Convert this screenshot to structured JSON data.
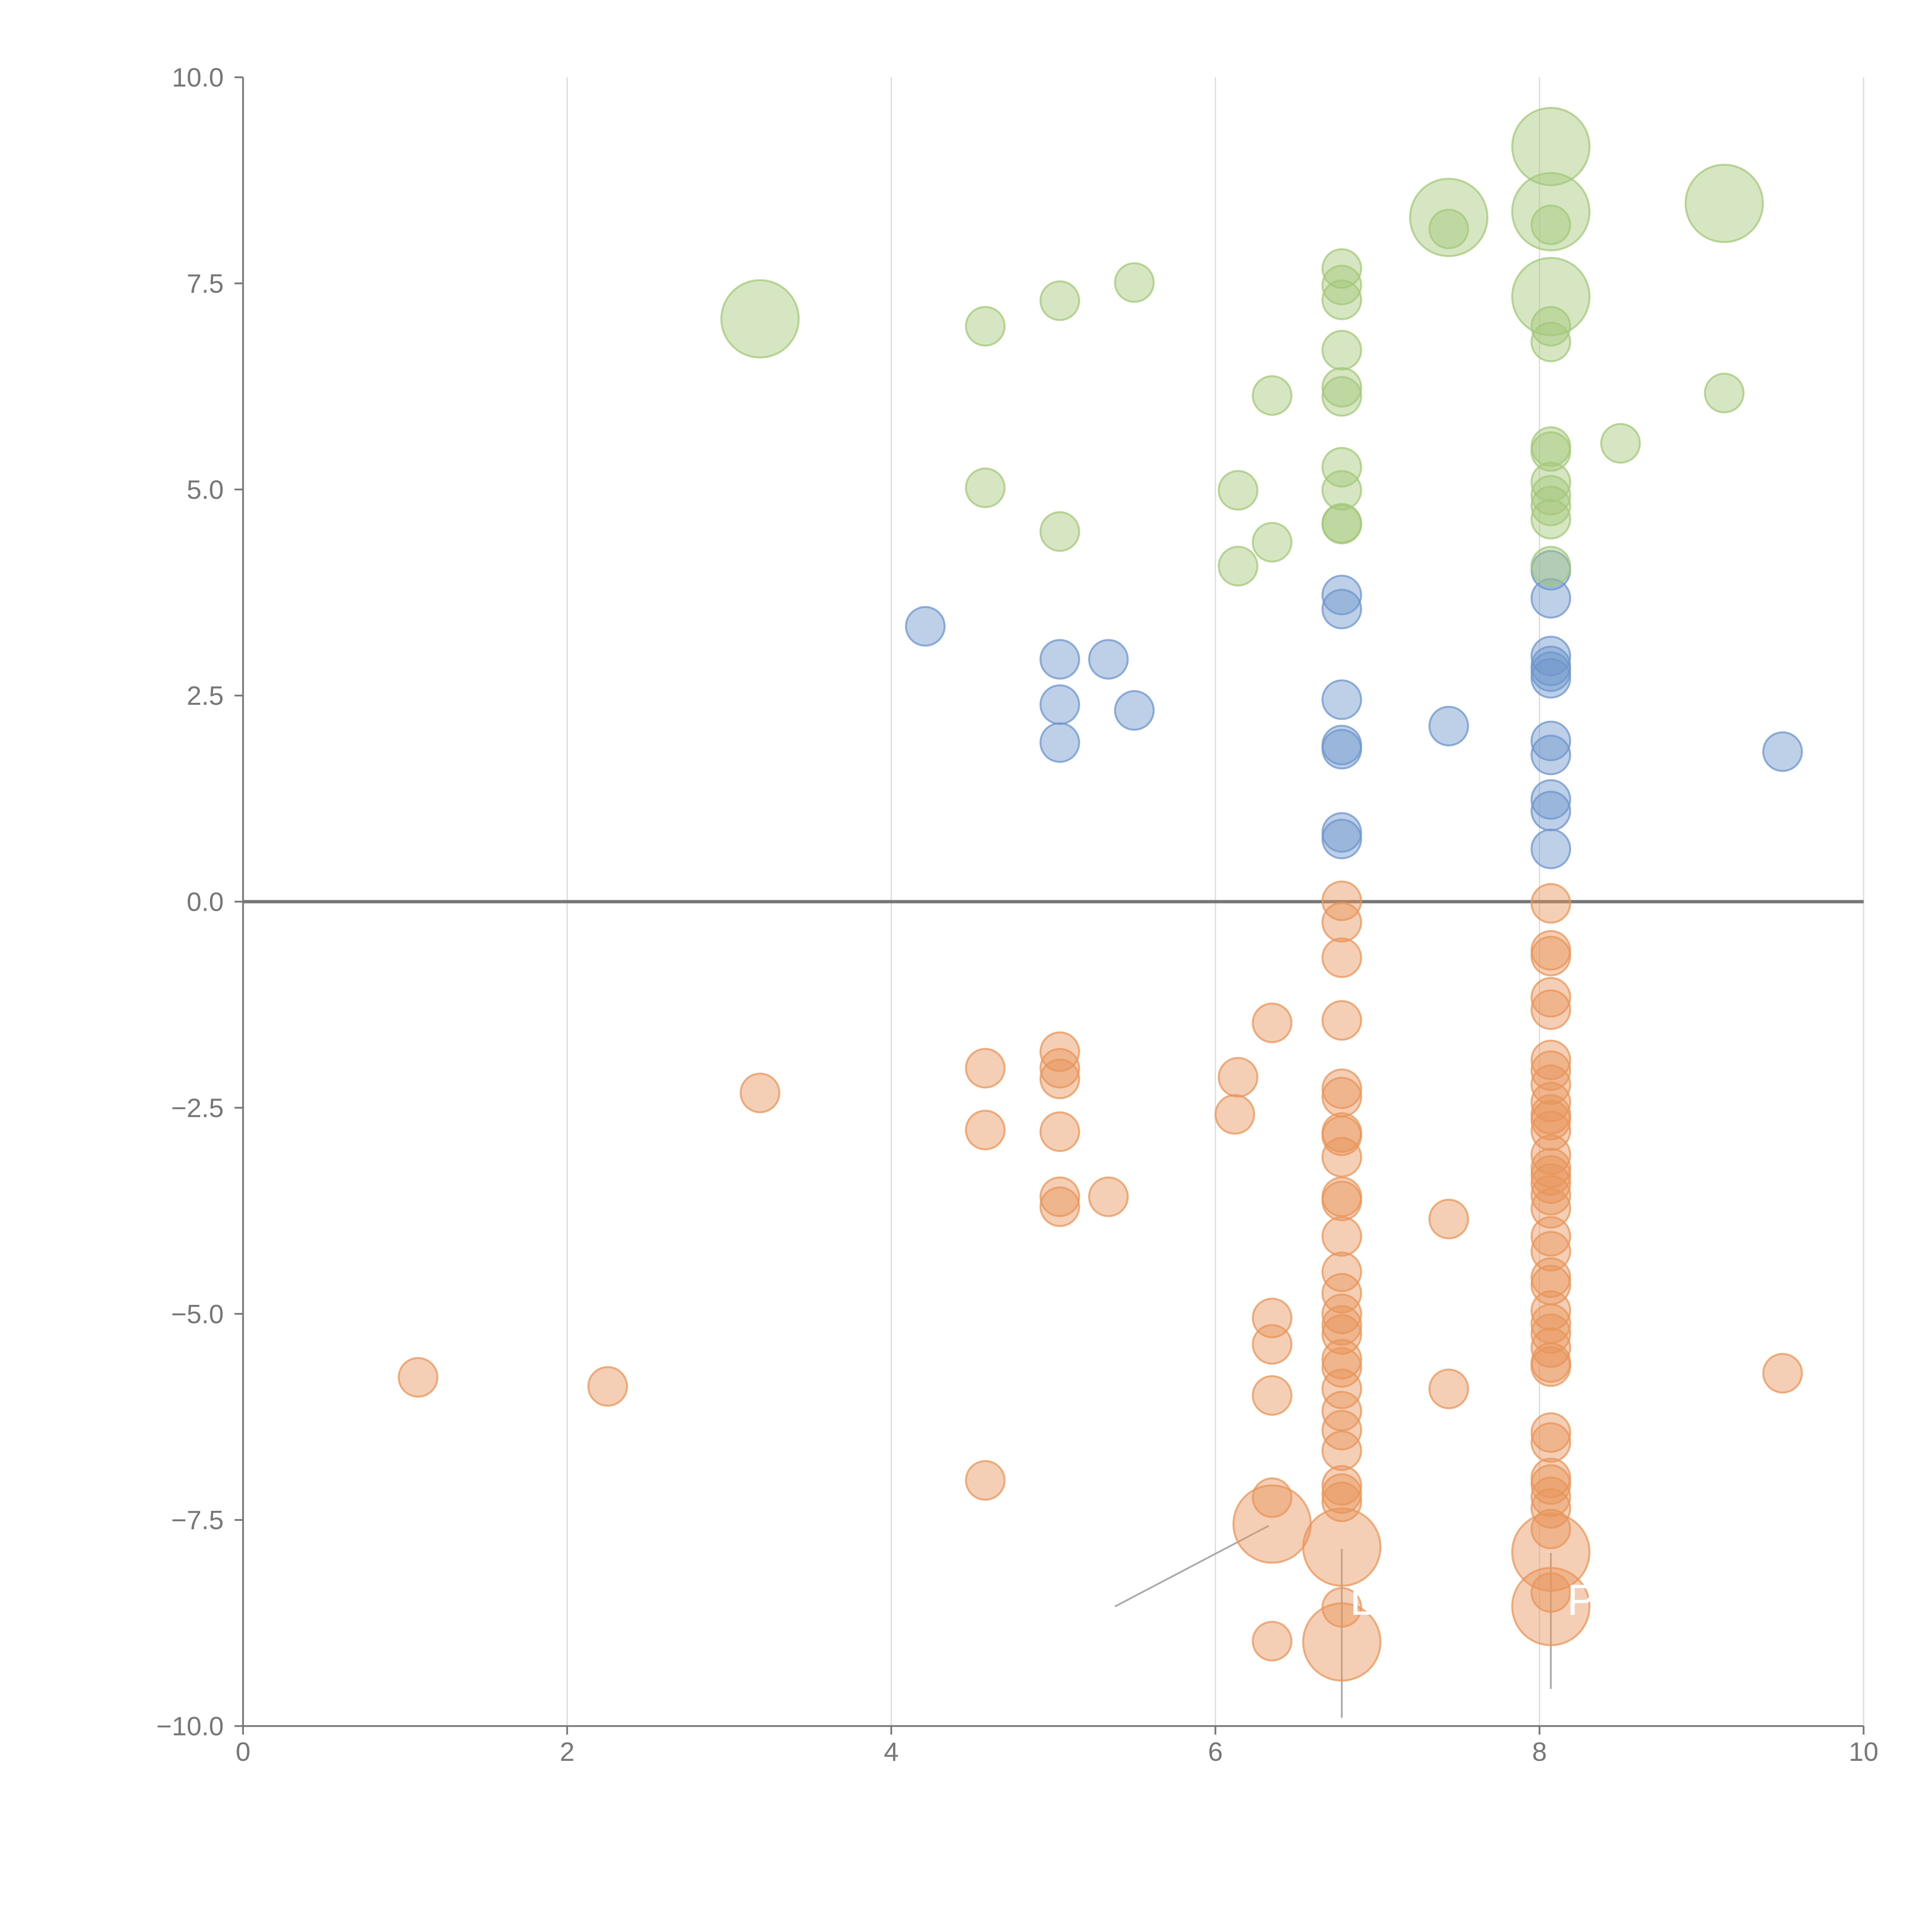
{
  "colors": {
    "orange": "#E8955A",
    "blue": "#6E96CC",
    "green": "#A3C87A",
    "axis": "#777777",
    "grid": "#dcdcdc"
  },
  "chart_data": {
    "type": "scatter",
    "variant": "bubble",
    "title": "",
    "xlabel": "",
    "ylabel": "",
    "xlim": [
      0,
      10
    ],
    "ylim": [
      -10,
      10
    ],
    "x_ticks": [
      "0",
      "2",
      "4",
      "6",
      "8",
      "10"
    ],
    "x_tick_values": [
      0,
      2,
      4,
      6,
      8,
      10
    ],
    "y_ticks": [
      "10.0",
      "7.5",
      "5.0",
      "2.5",
      "0.0",
      "−2.5",
      "−5.0",
      "−7.5",
      "−10.0"
    ],
    "y_tick_values": [
      10,
      7.5,
      5,
      2.5,
      0,
      -2.5,
      -5,
      -7.5,
      -10
    ],
    "grid": "vertical",
    "reference_line_y": 0,
    "legend": "none",
    "series": [
      {
        "color": "orange",
        "points": [
          [
            1.08,
            -5.77,
            1
          ],
          [
            2.25,
            -5.88,
            1
          ],
          [
            3.19,
            -2.32,
            1
          ],
          [
            4.58,
            -2.02,
            1
          ],
          [
            4.58,
            -2.77,
            1
          ],
          [
            4.58,
            -7.02,
            1
          ],
          [
            5.04,
            -1.82,
            1
          ],
          [
            5.04,
            -2.02,
            1
          ],
          [
            5.04,
            -2.15,
            1
          ],
          [
            5.04,
            -2.79,
            1
          ],
          [
            5.04,
            -3.58,
            1
          ],
          [
            5.04,
            -3.7,
            1
          ],
          [
            5.34,
            -3.58,
            1
          ],
          [
            6.14,
            -2.13,
            1
          ],
          [
            6.12,
            -2.58,
            1
          ],
          [
            6.35,
            -1.47,
            1
          ],
          [
            6.35,
            -5.05,
            1
          ],
          [
            6.35,
            -5.37,
            1
          ],
          [
            6.35,
            -5.99,
            1
          ],
          [
            6.35,
            -7.23,
            1
          ],
          [
            6.35,
            -8.97,
            1
          ],
          [
            6.35,
            -7.55,
            3
          ],
          [
            6.78,
            0.01,
            1
          ],
          [
            6.78,
            -0.25,
            1
          ],
          [
            6.78,
            -0.68,
            1
          ],
          [
            6.78,
            -1.44,
            1
          ],
          [
            6.78,
            -2.27,
            1
          ],
          [
            6.78,
            -2.37,
            1
          ],
          [
            6.78,
            -2.8,
            1
          ],
          [
            6.78,
            -2.84,
            1
          ],
          [
            6.78,
            -3.1,
            1
          ],
          [
            6.78,
            -3.58,
            1
          ],
          [
            6.78,
            -3.63,
            1
          ],
          [
            6.78,
            -4.06,
            1
          ],
          [
            6.78,
            -4.49,
            1
          ],
          [
            6.78,
            -4.75,
            1
          ],
          [
            6.78,
            -5.0,
            1
          ],
          [
            6.78,
            -5.14,
            1
          ],
          [
            6.78,
            -5.25,
            1
          ],
          [
            6.78,
            -5.55,
            1
          ],
          [
            6.78,
            -5.65,
            1
          ],
          [
            6.78,
            -5.91,
            1
          ],
          [
            6.78,
            -6.18,
            1
          ],
          [
            6.78,
            -6.41,
            1
          ],
          [
            6.78,
            -6.66,
            1
          ],
          [
            6.78,
            -7.08,
            1
          ],
          [
            6.78,
            -7.18,
            1
          ],
          [
            6.78,
            -7.28,
            1
          ],
          [
            6.78,
            -8.56,
            1
          ],
          [
            6.78,
            -7.83,
            3
          ],
          [
            6.78,
            -8.98,
            3
          ],
          [
            7.44,
            -3.85,
            1
          ],
          [
            7.44,
            -5.91,
            1
          ],
          [
            8.07,
            -0.02,
            1
          ],
          [
            8.07,
            -0.59,
            1
          ],
          [
            8.07,
            -0.66,
            1
          ],
          [
            8.07,
            -1.16,
            1
          ],
          [
            8.07,
            -1.31,
            1
          ],
          [
            8.07,
            -1.92,
            1
          ],
          [
            8.07,
            -2.05,
            1
          ],
          [
            8.07,
            -2.22,
            1
          ],
          [
            8.07,
            -2.43,
            1
          ],
          [
            8.07,
            -2.58,
            1
          ],
          [
            8.07,
            -2.65,
            1
          ],
          [
            8.07,
            -2.78,
            1
          ],
          [
            8.07,
            -3.07,
            1
          ],
          [
            8.07,
            -3.23,
            1
          ],
          [
            8.07,
            -3.32,
            1
          ],
          [
            8.07,
            -3.42,
            1
          ],
          [
            8.07,
            -3.56,
            1
          ],
          [
            8.07,
            -3.72,
            1
          ],
          [
            8.07,
            -4.06,
            1
          ],
          [
            8.07,
            -4.24,
            1
          ],
          [
            8.07,
            -4.56,
            1
          ],
          [
            8.07,
            -4.65,
            1
          ],
          [
            8.07,
            -4.96,
            1
          ],
          [
            8.07,
            -5.12,
            1
          ],
          [
            8.07,
            -5.24,
            1
          ],
          [
            8.07,
            -5.41,
            1
          ],
          [
            8.07,
            -5.59,
            1
          ],
          [
            8.07,
            -5.64,
            1
          ],
          [
            8.07,
            -6.44,
            1
          ],
          [
            8.07,
            -6.56,
            1
          ],
          [
            8.07,
            -6.99,
            1
          ],
          [
            8.07,
            -7.07,
            1
          ],
          [
            8.07,
            -7.22,
            1
          ],
          [
            8.07,
            -7.36,
            1
          ],
          [
            8.07,
            -7.61,
            1
          ],
          [
            8.07,
            -8.38,
            1
          ],
          [
            8.07,
            -7.89,
            3
          ],
          [
            8.07,
            -8.55,
            3
          ],
          [
            9.5,
            -5.72,
            1
          ]
        ]
      },
      {
        "color": "blue",
        "points": [
          [
            4.21,
            3.34,
            1
          ],
          [
            5.04,
            2.94,
            1
          ],
          [
            5.04,
            2.39,
            1
          ],
          [
            5.04,
            1.93,
            1
          ],
          [
            5.34,
            2.94,
            1
          ],
          [
            5.5,
            2.32,
            1
          ],
          [
            6.78,
            3.72,
            1
          ],
          [
            6.78,
            3.55,
            1
          ],
          [
            6.78,
            2.45,
            1
          ],
          [
            6.78,
            1.9,
            1
          ],
          [
            6.78,
            1.85,
            1
          ],
          [
            6.78,
            0.84,
            1
          ],
          [
            6.78,
            0.76,
            1
          ],
          [
            7.44,
            2.13,
            1
          ],
          [
            8.07,
            4.02,
            1
          ],
          [
            8.07,
            3.68,
            1
          ],
          [
            8.07,
            2.98,
            1
          ],
          [
            8.07,
            2.86,
            1
          ],
          [
            8.07,
            2.79,
            1
          ],
          [
            8.07,
            2.71,
            1
          ],
          [
            8.07,
            1.95,
            1
          ],
          [
            8.07,
            1.78,
            1
          ],
          [
            8.07,
            1.24,
            1
          ],
          [
            8.07,
            1.1,
            1
          ],
          [
            8.07,
            0.64,
            1
          ],
          [
            9.5,
            1.82,
            1
          ]
        ]
      },
      {
        "color": "green",
        "points": [
          [
            3.19,
            7.07,
            3
          ],
          [
            4.58,
            6.98,
            1
          ],
          [
            4.58,
            5.02,
            1
          ],
          [
            5.04,
            7.29,
            1
          ],
          [
            5.04,
            4.49,
            1
          ],
          [
            5.5,
            7.51,
            1
          ],
          [
            6.14,
            4.99,
            1
          ],
          [
            6.14,
            4.07,
            1
          ],
          [
            6.35,
            6.14,
            1
          ],
          [
            6.35,
            4.36,
            1
          ],
          [
            6.78,
            7.68,
            1
          ],
          [
            6.78,
            7.48,
            1
          ],
          [
            6.78,
            7.3,
            1
          ],
          [
            6.78,
            6.69,
            1
          ],
          [
            6.78,
            6.24,
            1
          ],
          [
            6.78,
            6.13,
            1
          ],
          [
            6.78,
            5.27,
            1
          ],
          [
            6.78,
            4.99,
            1
          ],
          [
            6.78,
            4.59,
            1
          ],
          [
            6.78,
            4.58,
            1
          ],
          [
            7.44,
            8.3,
            3
          ],
          [
            7.44,
            8.16,
            1
          ],
          [
            8.07,
            9.16,
            3
          ],
          [
            8.07,
            8.37,
            3
          ],
          [
            8.07,
            8.21,
            1
          ],
          [
            8.07,
            7.34,
            3
          ],
          [
            8.07,
            6.98,
            1
          ],
          [
            8.07,
            6.79,
            1
          ],
          [
            8.07,
            5.52,
            1
          ],
          [
            8.07,
            5.46,
            1
          ],
          [
            8.07,
            5.09,
            1
          ],
          [
            8.07,
            4.93,
            1
          ],
          [
            8.07,
            4.8,
            1
          ],
          [
            8.07,
            4.64,
            1
          ],
          [
            8.07,
            4.07,
            1
          ],
          [
            8.5,
            5.56,
            1
          ],
          [
            9.14,
            8.47,
            3
          ],
          [
            9.14,
            6.17,
            1
          ]
        ]
      }
    ],
    "annotations": [
      {
        "text": "L",
        "x": 6.83,
        "y": -8.65
      },
      {
        "text": "P",
        "x": 8.17,
        "y": -8.65
      }
    ]
  }
}
